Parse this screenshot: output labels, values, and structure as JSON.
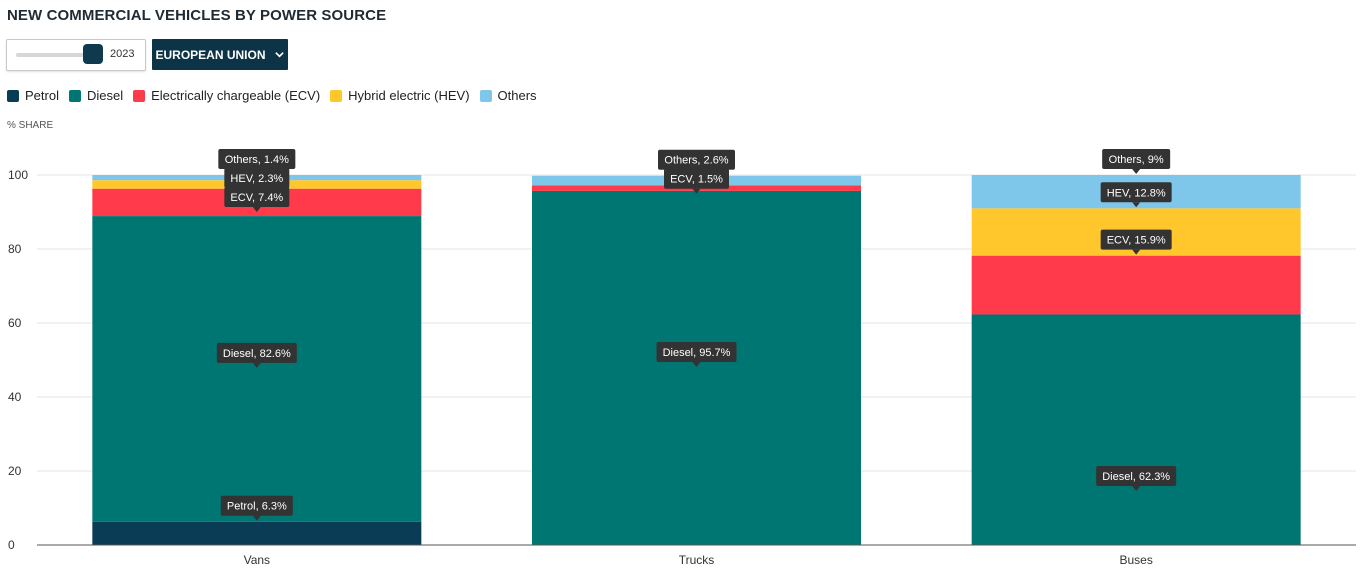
{
  "title": "NEW COMMERCIAL VEHICLES BY POWER SOURCE",
  "controls": {
    "year": "2023",
    "region": "EUROPEAN UNION",
    "year_slider_fraction": 1.0
  },
  "icons": {
    "region_dropdown": "chevron-down-icon"
  },
  "colors": {
    "Petrol": "#0b3c55",
    "Diesel": "#007673",
    "Electrically chargeable (ECV)": "#ff3a4a",
    "Hybrid electric (HEV)": "#ffc72c",
    "Others": "#7ec6ea"
  },
  "chart_data": {
    "type": "bar",
    "stacked": true,
    "ylabel": "% SHARE",
    "ylim": [
      0,
      100
    ],
    "yticks": [
      0,
      20,
      40,
      60,
      80,
      100
    ],
    "grid": true,
    "legend_position": "top-left",
    "categories": [
      "Vans",
      "Trucks",
      "Buses"
    ],
    "series": [
      {
        "name": "Petrol",
        "short": "Petrol",
        "values": [
          6.3,
          0,
          0
        ]
      },
      {
        "name": "Diesel",
        "short": "Diesel",
        "values": [
          82.6,
          95.7,
          62.3
        ]
      },
      {
        "name": "Electrically chargeable (ECV)",
        "short": "ECV",
        "values": [
          7.4,
          1.5,
          15.9
        ]
      },
      {
        "name": "Hybrid electric (HEV)",
        "short": "HEV",
        "values": [
          2.3,
          0,
          12.8
        ]
      },
      {
        "name": "Others",
        "short": "Others",
        "values": [
          1.4,
          2.6,
          9
        ]
      }
    ],
    "data_labels": [
      {
        "category": "Vans",
        "series": "Petrol",
        "text": "Petrol, 6.3%"
      },
      {
        "category": "Vans",
        "series": "Diesel",
        "text": "Diesel, 82.6%"
      },
      {
        "category": "Vans",
        "series": "Electrically chargeable (ECV)",
        "text": "ECV, 7.4%"
      },
      {
        "category": "Vans",
        "series": "Hybrid electric (HEV)",
        "text": "HEV, 2.3%"
      },
      {
        "category": "Vans",
        "series": "Others",
        "text": "Others, 1.4%"
      },
      {
        "category": "Trucks",
        "series": "Diesel",
        "text": "Diesel, 95.7%"
      },
      {
        "category": "Trucks",
        "series": "Electrically chargeable (ECV)",
        "text": "ECV, 1.5%"
      },
      {
        "category": "Trucks",
        "series": "Others",
        "text": "Others, 2.6%"
      },
      {
        "category": "Buses",
        "series": "Diesel",
        "text": "Diesel, 62.3%"
      },
      {
        "category": "Buses",
        "series": "Electrically chargeable (ECV)",
        "text": "ECV, 15.9%"
      },
      {
        "category": "Buses",
        "series": "Hybrid electric (HEV)",
        "text": "HEV, 12.8%"
      },
      {
        "category": "Buses",
        "series": "Others",
        "text": "Others, 9%"
      }
    ]
  }
}
